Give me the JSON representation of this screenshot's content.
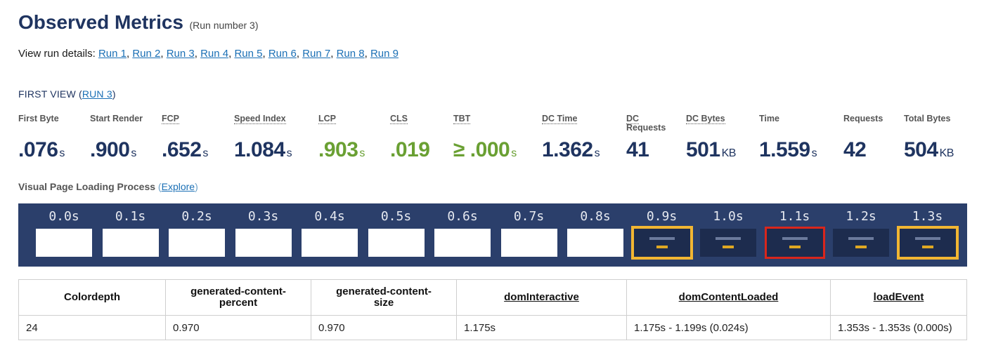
{
  "header": {
    "title": "Observed Metrics",
    "run_number": "(Run number 3)"
  },
  "run_details": {
    "label": "View run details:",
    "runs": [
      "Run 1",
      "Run 2",
      "Run 3",
      "Run 4",
      "Run 5",
      "Run 6",
      "Run 7",
      "Run 8",
      "Run 9"
    ]
  },
  "first_view": {
    "prefix": "FIRST VIEW (",
    "link": "RUN 3",
    "suffix": ")"
  },
  "metrics": [
    {
      "label": "First Byte",
      "value": ".076",
      "unit": "s",
      "status": "normal"
    },
    {
      "label": "Start Render",
      "value": ".900",
      "unit": "s",
      "status": "normal"
    },
    {
      "label": "FCP",
      "value": ".652",
      "unit": "s",
      "status": "normal"
    },
    {
      "label": "Speed Index",
      "value": "1.084",
      "unit": "s",
      "status": "normal"
    },
    {
      "label": "LCP",
      "value": ".903",
      "unit": "s",
      "status": "good"
    },
    {
      "label": "CLS",
      "value": ".019",
      "unit": "",
      "status": "good"
    },
    {
      "label": "TBT",
      "value": "≥ .000",
      "unit": "s",
      "status": "good"
    },
    {
      "label": "DC Time",
      "value": "1.362",
      "unit": "s",
      "status": "normal"
    },
    {
      "label_line1": "DC",
      "label_line2": "Requests",
      "value": "41",
      "unit": "",
      "status": "normal"
    },
    {
      "label": "DC Bytes",
      "value": "501",
      "unit": "KB",
      "status": "normal"
    },
    {
      "label": "Time",
      "value": "1.559",
      "unit": "s",
      "status": "normal"
    },
    {
      "label": "Requests",
      "value": "42",
      "unit": "",
      "status": "normal"
    },
    {
      "label": "Total Bytes",
      "value": "504",
      "unit": "KB",
      "status": "normal"
    }
  ],
  "visual_loading": {
    "label": "Visual Page Loading Process",
    "paren_open": " (",
    "link": "Explore",
    "paren_close": ")"
  },
  "filmstrip": [
    {
      "time": "0.0s",
      "state": "blank"
    },
    {
      "time": "0.1s",
      "state": "blank"
    },
    {
      "time": "0.2s",
      "state": "blank"
    },
    {
      "time": "0.3s",
      "state": "blank"
    },
    {
      "time": "0.4s",
      "state": "blank"
    },
    {
      "time": "0.5s",
      "state": "blank"
    },
    {
      "time": "0.6s",
      "state": "blank"
    },
    {
      "time": "0.7s",
      "state": "blank"
    },
    {
      "time": "0.8s",
      "state": "blank"
    },
    {
      "time": "0.9s",
      "state": "changed"
    },
    {
      "time": "1.0s",
      "state": "rendered"
    },
    {
      "time": "1.1s",
      "state": "lcp"
    },
    {
      "time": "1.2s",
      "state": "rendered"
    },
    {
      "time": "1.3s",
      "state": "changed"
    }
  ],
  "colors": {
    "title": "#1f3460",
    "good": "#6aa033",
    "filmstrip_bg": "#2b3f6b",
    "frame_changed": "#f2b632",
    "frame_lcp": "#d9261c",
    "link": "#1a6fb5"
  },
  "timings_table": {
    "headers": [
      {
        "line1": "Colordepth",
        "line2": "",
        "link": false
      },
      {
        "line1": "generated-content-",
        "line2": "percent",
        "link": false
      },
      {
        "line1": "generated-content-",
        "line2": "size",
        "link": false
      },
      {
        "line1": "domInteractive",
        "line2": "",
        "link": true
      },
      {
        "line1": "domContentLoaded",
        "line2": "",
        "link": true
      },
      {
        "line1": "loadEvent",
        "line2": "",
        "link": true
      }
    ],
    "row": [
      "24",
      "0.970",
      "0.970",
      "1.175s",
      "1.175s - 1.199s (0.024s)",
      "1.353s - 1.353s (0.000s)"
    ]
  }
}
